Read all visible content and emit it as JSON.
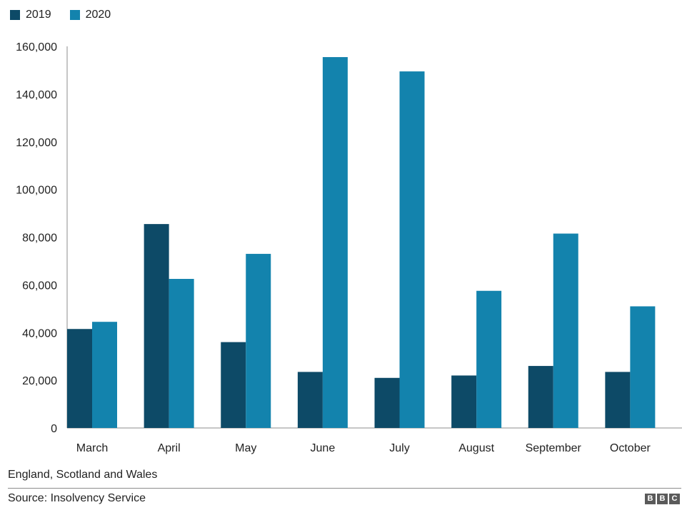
{
  "colors": {
    "2019": "#0d4a67",
    "2020": "#1383ad",
    "axis": "#8c8c8c"
  },
  "chart_data": {
    "type": "bar",
    "title": "",
    "xlabel": "",
    "ylabel": "",
    "categories": [
      "March",
      "April",
      "May",
      "June",
      "July",
      "August",
      "September",
      "October"
    ],
    "series": [
      {
        "name": "2019",
        "values": [
          41500,
          85500,
          36000,
          23500,
          21000,
          22000,
          26000,
          23500
        ]
      },
      {
        "name": "2020",
        "values": [
          44500,
          62500,
          73000,
          155500,
          149500,
          57500,
          81500,
          51000
        ]
      }
    ],
    "ylim": [
      0,
      160000
    ],
    "yticks": [
      0,
      20000,
      40000,
      60000,
      80000,
      100000,
      120000,
      140000,
      160000
    ],
    "ytick_labels": [
      "0",
      "20,000",
      "40,000",
      "60,000",
      "80,000",
      "100,000",
      "120,000",
      "140,000",
      "160,000"
    ],
    "grid": false,
    "legend_position": "top-left"
  },
  "legend": {
    "items": [
      "2019",
      "2020"
    ]
  },
  "footer": {
    "note": "England, Scotland and Wales",
    "source": "Source: Insolvency Service",
    "logo": [
      "B",
      "B",
      "C"
    ]
  }
}
